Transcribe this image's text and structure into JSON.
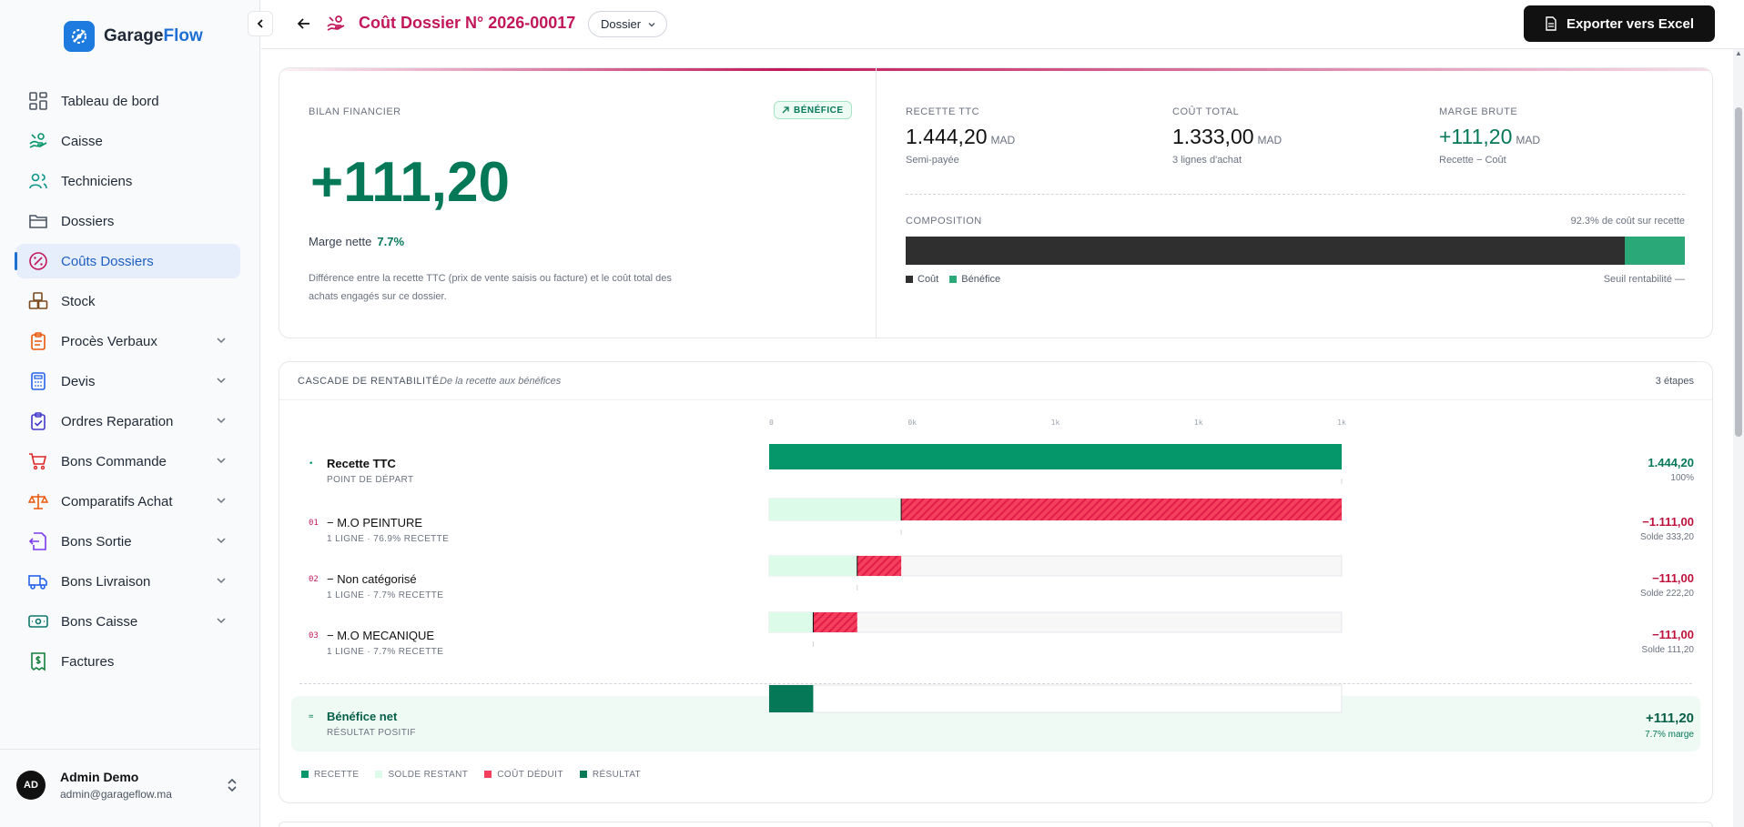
{
  "app": {
    "name_part1": "Garage",
    "name_part2": "Flow"
  },
  "sidebar": {
    "items": [
      {
        "label": "Tableau de bord",
        "icon": "dashboard-icon",
        "color": "#4b5563",
        "chevron": false,
        "active": false
      },
      {
        "label": "Caisse",
        "icon": "cash-hand-icon",
        "color": "#059669",
        "chevron": false,
        "active": false
      },
      {
        "label": "Techniciens",
        "icon": "users-icon",
        "color": "#0d9488",
        "chevron": false,
        "active": false
      },
      {
        "label": "Dossiers",
        "icon": "folder-icon",
        "color": "#4b5563",
        "chevron": false,
        "active": false
      },
      {
        "label": "Coûts Dossiers",
        "icon": "percent-circle-icon",
        "color": "#c2185b",
        "chevron": false,
        "active": true
      },
      {
        "label": "Stock",
        "icon": "boxes-icon",
        "color": "#7c4a1e",
        "chevron": false,
        "active": false
      },
      {
        "label": "Procès Verbaux",
        "icon": "clipboard-icon",
        "color": "#ea580c",
        "chevron": true,
        "active": false
      },
      {
        "label": "Devis",
        "icon": "calculator-icon",
        "color": "#2563eb",
        "chevron": true,
        "active": false
      },
      {
        "label": "Ordres Reparation",
        "icon": "clipboard-check-icon",
        "color": "#4338ca",
        "chevron": true,
        "active": false
      },
      {
        "label": "Bons Commande",
        "icon": "cart-icon",
        "color": "#dc2626",
        "chevron": true,
        "active": false
      },
      {
        "label": "Comparatifs Achat",
        "icon": "scale-icon",
        "color": "#ea580c",
        "chevron": true,
        "active": false
      },
      {
        "label": "Bons Sortie",
        "icon": "exit-doc-icon",
        "color": "#7c3aed",
        "chevron": true,
        "active": false
      },
      {
        "label": "Bons Livraison",
        "icon": "truck-icon",
        "color": "#2563eb",
        "chevron": true,
        "active": false
      },
      {
        "label": "Bons Caisse",
        "icon": "banknote-icon",
        "color": "#0f766e",
        "chevron": true,
        "active": false
      },
      {
        "label": "Factures",
        "icon": "receipt-icon",
        "color": "#15803d",
        "chevron": false,
        "active": false
      }
    ]
  },
  "user": {
    "initials": "AD",
    "name": "Admin Demo",
    "email": "admin@garageflow.ma"
  },
  "header": {
    "title": "Coût Dossier N° 2026-00017",
    "type_badge": "Dossier",
    "export_label": "Exporter vers Excel"
  },
  "bilan": {
    "label": "BILAN FINANCIER",
    "badge": "BÉNÉFICE",
    "big_value": "+111,20",
    "margin_label": "Marge nette",
    "margin_pct": "7.7%",
    "description": "Différence entre la recette TTC (prix de vente saisis ou facture) et le coût total des achats engagés sur ce dossier."
  },
  "kpis": [
    {
      "label": "RECETTE TTC",
      "value": "1.444,20",
      "unit": "MAD",
      "sub": "Semi-payée",
      "green": false
    },
    {
      "label": "COÛT TOTAL",
      "value": "1.333,00",
      "unit": "MAD",
      "sub": "3 lignes d'achat",
      "green": false
    },
    {
      "label": "MARGE BRUTE",
      "value": "+111,20",
      "unit": "MAD",
      "sub": "Recette − Coût",
      "green": true
    }
  ],
  "composition": {
    "label": "COMPOSITION",
    "ratio_text": "92.3% de coût sur recette",
    "cost_fraction": 0.923,
    "legend_cost": "Coût",
    "legend_profit": "Bénéfice",
    "threshold_label": "Seuil rentabilité —",
    "colors": {
      "cost": "#2f2f2f",
      "profit": "#2aa878"
    }
  },
  "cascade": {
    "title": "CASCADE DE RENTABILITÉ",
    "subtitle": "De la recette aux bénéfices",
    "steps_label": "3 étapes",
    "axis_ticks": [
      "0",
      "0k",
      "1k",
      "1k",
      "1k"
    ],
    "legend": [
      "RECETTE",
      "SOLDE RESTANT",
      "COÛT DÉDUIT",
      "RÉSULTAT"
    ]
  },
  "chart_data": {
    "type": "bar",
    "subtype": "waterfall",
    "xlim": [
      0,
      1444.2
    ],
    "tick_labels": [
      "0",
      "0k",
      "1k",
      "1k",
      "1k"
    ],
    "colors": {
      "recette": "#059669",
      "solde": "#dcfbe9",
      "cout": "#f43f5e",
      "resultat": "#047857"
    },
    "rows": [
      {
        "kind": "start",
        "num": "•",
        "title": "Recette TTC",
        "sub": "POINT DE DÉPART",
        "value": 1444.2,
        "value_label": "1.444,20",
        "right_sub": "100%"
      },
      {
        "kind": "cost",
        "num": "01",
        "title": "− M.O PEINTURE",
        "sub": "1 LIGNE · 76.9% RECETTE",
        "value": 1111.0,
        "remaining": 333.2,
        "value_label": "−1.111,00",
        "right_sub": "Solde 333,20"
      },
      {
        "kind": "cost",
        "num": "02",
        "title": "− Non catégorisé",
        "sub": "1 LIGNE · 7.7% RECETTE",
        "value": 111.0,
        "remaining": 222.2,
        "value_label": "−111,00",
        "right_sub": "Solde 222,20"
      },
      {
        "kind": "cost",
        "num": "03",
        "title": "− M.O MECANIQUE",
        "sub": "1 LIGNE · 7.7% RECETTE",
        "value": 111.0,
        "remaining": 111.2,
        "value_label": "−111,00",
        "right_sub": "Solde 111,20"
      },
      {
        "kind": "net",
        "num": "=",
        "title": "Bénéfice net",
        "sub": "RÉSULTAT POSITIF",
        "value": 111.2,
        "value_label": "+111,20",
        "right_sub": "7.7% marge"
      }
    ]
  }
}
